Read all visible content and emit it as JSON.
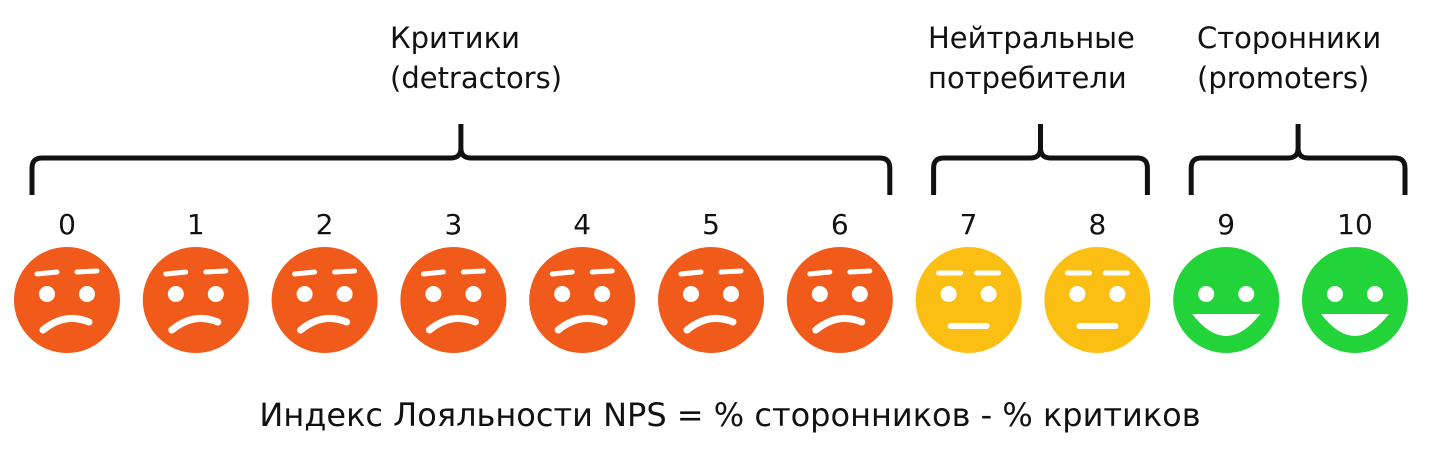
{
  "groups": [
    {
      "lines": [
        "Критики",
        "(detractors)"
      ],
      "color": "#f05a1a",
      "scores": [
        0,
        1,
        2,
        3,
        4,
        5,
        6
      ]
    },
    {
      "lines": [
        "Нейтральные",
        "потребители"
      ],
      "color": "#fbbf14",
      "scores": [
        7,
        8
      ]
    },
    {
      "lines": [
        "Сторонники",
        "(promoters)"
      ],
      "color": "#22d33a",
      "scores": [
        9,
        10
      ]
    }
  ],
  "formula": "Индекс Лояльности NPS = % сторонников - % критиков"
}
